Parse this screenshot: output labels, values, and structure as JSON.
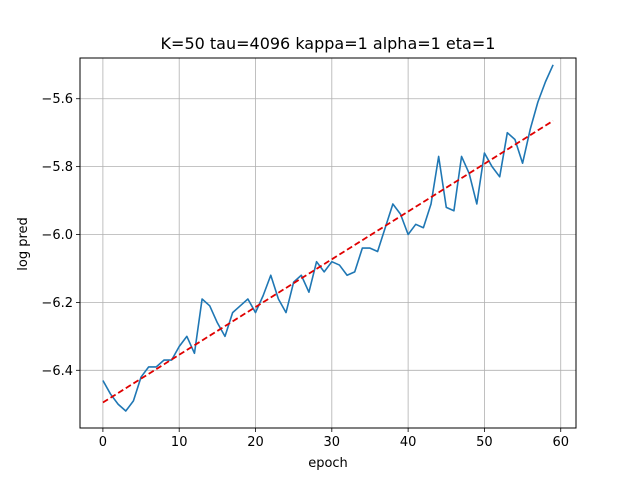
{
  "chart_data": {
    "type": "line",
    "title": "K=50 tau=4096 kappa=1 alpha=1 eta=1",
    "xlabel": "epoch",
    "ylabel": "log pred",
    "xlim": [
      -3,
      62
    ],
    "ylim": [
      -6.57,
      -5.48
    ],
    "xticks": [
      0,
      10,
      20,
      30,
      40,
      50,
      60
    ],
    "yticks": [
      -6.4,
      -6.2,
      -6.0,
      -5.8,
      -5.6
    ],
    "grid": true,
    "series": [
      {
        "style": "solid",
        "color": "#1f77b4",
        "x": [
          0,
          1,
          2,
          3,
          4,
          5,
          6,
          7,
          8,
          9,
          10,
          11,
          12,
          13,
          14,
          15,
          16,
          17,
          18,
          19,
          20,
          21,
          22,
          23,
          24,
          25,
          26,
          27,
          28,
          29,
          30,
          31,
          32,
          33,
          34,
          35,
          36,
          37,
          38,
          39,
          40,
          41,
          42,
          43,
          44,
          45,
          46,
          47,
          48,
          49,
          50,
          51,
          52,
          53,
          54,
          55,
          56,
          57,
          58,
          59
        ],
        "y": [
          -6.43,
          -6.47,
          -6.5,
          -6.52,
          -6.49,
          -6.42,
          -6.39,
          -6.39,
          -6.37,
          -6.37,
          -6.33,
          -6.3,
          -6.35,
          -6.19,
          -6.21,
          -6.26,
          -6.3,
          -6.23,
          -6.21,
          -6.19,
          -6.23,
          -6.18,
          -6.12,
          -6.19,
          -6.23,
          -6.14,
          -6.12,
          -6.17,
          -6.08,
          -6.11,
          -6.08,
          -6.09,
          -6.12,
          -6.11,
          -6.04,
          -6.04,
          -6.05,
          -5.98,
          -5.91,
          -5.94,
          -6.0,
          -5.97,
          -5.98,
          -5.91,
          -5.77,
          -5.92,
          -5.93,
          -5.77,
          -5.82,
          -5.91,
          -5.76,
          -5.8,
          -5.83,
          -5.7,
          -5.72,
          -5.79,
          -5.69,
          -5.61,
          -5.55,
          -5.5
        ]
      },
      {
        "style": "dashed",
        "color": "#e00000",
        "x": [
          0,
          59
        ],
        "y": [
          -6.495,
          -5.665
        ]
      }
    ]
  }
}
